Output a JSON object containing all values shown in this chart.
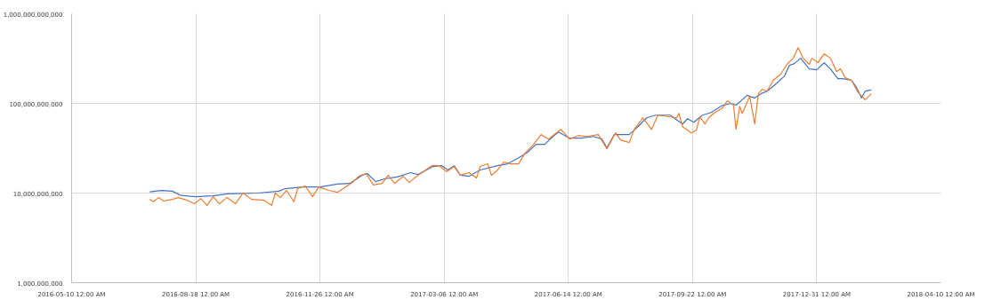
{
  "chart_data": {
    "type": "line",
    "log": "y",
    "grid": true,
    "marker": "none",
    "line_style": "solid",
    "xlim": [
      "2016-05-10",
      "2018-04-10"
    ],
    "xticks": [
      {
        "value": "2016-05-10",
        "label": "2016-05-10 12:00 AM"
      },
      {
        "value": "2016-08-18",
        "label": "2016-08-18 12:00 AM"
      },
      {
        "value": "2016-11-26",
        "label": "2016-11-26 12:00 AM"
      },
      {
        "value": "2017-03-06",
        "label": "2017-03-06 12:00 AM"
      },
      {
        "value": "2017-06-14",
        "label": "2017-06-14 12:00 AM"
      },
      {
        "value": "2017-09-22",
        "label": "2017-09-22 12:00 AM"
      },
      {
        "value": "2017-12-31",
        "label": "2017-12-31 12:00 AM"
      },
      {
        "value": "2018-04-10",
        "label": "2018-04-10 12:00 AM"
      }
    ],
    "ylim": [
      1000000000.0,
      1000000000000.0
    ],
    "yticks": [
      {
        "value": 1000000000.0,
        "label": "1,000,000,000"
      },
      {
        "value": 10000000000.0,
        "label": "10,000,000,000"
      },
      {
        "value": 100000000000.0,
        "label": "100,000,000,000"
      },
      {
        "value": 1000000000000.0,
        "label": "1,000,000,000,000"
      }
    ],
    "series": [
      {
        "color": "#4472c4",
        "x": [
          "2016-07-12",
          "2016-07-21",
          "2016-07-30",
          "2016-08-06",
          "2016-08-18",
          "2016-09-01",
          "2016-09-13",
          "2016-10-07",
          "2016-10-24",
          "2016-10-29",
          "2016-11-12",
          "2016-11-26",
          "2016-12-10",
          "2016-12-20",
          "2016-12-30",
          "2017-01-03",
          "2017-01-10",
          "2017-01-17",
          "2017-01-27",
          "2017-02-07",
          "2017-02-13",
          "2017-02-25",
          "2017-03-04",
          "2017-03-09",
          "2017-03-14",
          "2017-03-19",
          "2017-03-26",
          "2017-04-04",
          "2017-04-18",
          "2017-04-26",
          "2017-05-05",
          "2017-05-12",
          "2017-05-19",
          "2017-05-26",
          "2017-05-31",
          "2017-06-06",
          "2017-06-15",
          "2017-06-24",
          "2017-07-04",
          "2017-07-11",
          "2017-07-15",
          "2017-07-21",
          "2017-08-02",
          "2017-08-09",
          "2017-08-16",
          "2017-08-23",
          "2017-09-04",
          "2017-09-14",
          "2017-09-18",
          "2017-09-23",
          "2017-09-30",
          "2017-10-07",
          "2017-10-16",
          "2017-10-23",
          "2017-10-27",
          "2017-11-05",
          "2017-11-11",
          "2017-11-16",
          "2017-11-21",
          "2017-11-29",
          "2017-12-05",
          "2017-12-09",
          "2017-12-13",
          "2017-12-18",
          "2017-12-25",
          "2017-12-31",
          "2018-01-06",
          "2018-01-11",
          "2018-01-17",
          "2018-01-21",
          "2018-01-28",
          "2018-02-01",
          "2018-02-05",
          "2018-02-08",
          "2018-02-13"
        ],
        "values": [
          10300000000.0,
          10700000000.0,
          10500000000.0,
          9400000000.0,
          9100000000.0,
          9300000000.0,
          9800000000.0,
          10000000000.0,
          10500000000.0,
          11200000000.0,
          11700000000.0,
          11700000000.0,
          12600000000.0,
          12800000000.0,
          15800000000.0,
          16500000000.0,
          13400000000.0,
          14400000000.0,
          15100000000.0,
          16900000000.0,
          16100000000.0,
          19800000000.0,
          20200000000.0,
          18100000000.0,
          20200000000.0,
          15800000000.0,
          15400000000.0,
          18100000000.0,
          20200000000.0,
          21200000000.0,
          24800000000.0,
          28400000000.0,
          34900000000.0,
          34900000000.0,
          40900000000.0,
          48000000000.0,
          40900000000.0,
          40900000000.0,
          42800000000.0,
          40000000000.0,
          31900000000.0,
          44900000000.0,
          44900000000.0,
          55000000000.0,
          69000000000.0,
          73900000000.0,
          73900000000.0,
          58900000000.0,
          67500000000.0,
          61700000000.0,
          73900000000.0,
          79100000000.0,
          94800000000.0,
          100000000000.0,
          95600000000.0,
          123000000000.0,
          115000000000.0,
          128000000000.0,
          137000000000.0,
          169000000000.0,
          202000000000.0,
          266000000000.0,
          278000000000.0,
          319000000000.0,
          243000000000.0,
          237000000000.0,
          284000000000.0,
          243000000000.0,
          189000000000.0,
          189000000000.0,
          181000000000.0,
          151000000000.0,
          115000000000.0,
          137000000000.0,
          141000000000.0
        ]
      },
      {
        "color": "#ed7d31",
        "x": [
          "2016-07-12",
          "2016-07-15",
          "2016-07-19",
          "2016-07-23",
          "2016-07-30",
          "2016-08-04",
          "2016-08-11",
          "2016-08-17",
          "2016-08-22",
          "2016-08-27",
          "2016-09-01",
          "2016-09-06",
          "2016-09-12",
          "2016-09-19",
          "2016-09-25",
          "2016-10-02",
          "2016-10-12",
          "2016-10-18",
          "2016-10-21",
          "2016-10-25",
          "2016-10-30",
          "2016-11-05",
          "2016-11-08",
          "2016-11-14",
          "2016-11-20",
          "2016-11-25",
          "2016-12-03",
          "2016-12-10",
          "2016-12-23",
          "2016-12-27",
          "2017-01-02",
          "2017-01-08",
          "2017-01-15",
          "2017-01-20",
          "2017-01-25",
          "2017-02-01",
          "2017-02-06",
          "2017-02-11",
          "2017-02-15",
          "2017-02-24",
          "2017-03-02",
          "2017-03-08",
          "2017-03-14",
          "2017-03-19",
          "2017-03-26",
          "2017-04-01",
          "2017-04-04",
          "2017-04-10",
          "2017-04-13",
          "2017-04-18",
          "2017-04-23",
          "2017-04-28",
          "2017-05-05",
          "2017-05-10",
          "2017-05-17",
          "2017-05-23",
          "2017-05-29",
          "2017-06-08",
          "2017-06-15",
          "2017-06-22",
          "2017-06-29",
          "2017-07-08",
          "2017-07-15",
          "2017-07-22",
          "2017-07-26",
          "2017-08-02",
          "2017-08-06",
          "2017-08-13",
          "2017-08-20",
          "2017-08-25",
          "2017-09-09",
          "2017-09-11",
          "2017-09-14",
          "2017-09-21",
          "2017-09-25",
          "2017-09-28",
          "2017-10-02",
          "2017-10-05",
          "2017-10-09",
          "2017-10-16",
          "2017-10-20",
          "2017-10-25",
          "2017-10-27",
          "2017-10-30",
          "2017-11-01",
          "2017-11-07",
          "2017-11-11",
          "2017-11-14",
          "2017-11-17",
          "2017-11-21",
          "2017-11-26",
          "2017-12-02",
          "2017-12-07",
          "2017-12-12",
          "2017-12-16",
          "2017-12-20",
          "2017-12-25",
          "2017-12-27",
          "2018-01-01",
          "2018-01-06",
          "2018-01-11",
          "2018-01-16",
          "2018-01-19",
          "2018-01-23",
          "2018-01-28",
          "2018-02-02",
          "2018-02-08",
          "2018-02-13"
        ],
        "values": [
          8500000000.0,
          8000000000.0,
          8900000000.0,
          8150000000.0,
          8500000000.0,
          8900000000.0,
          8300000000.0,
          7600000000.0,
          8700000000.0,
          7300000000.0,
          9100000000.0,
          7600000000.0,
          8900000000.0,
          7600000000.0,
          10000000000.0,
          8500000000.0,
          8300000000.0,
          7300000000.0,
          10000000000.0,
          8900000000.0,
          10700000000.0,
          8000000000.0,
          11200000000.0,
          12000000000.0,
          9100000000.0,
          11700000000.0,
          10700000000.0,
          10200000000.0,
          13400000000.0,
          15400000000.0,
          16500000000.0,
          12300000000.0,
          12800000000.0,
          15800000000.0,
          12800000000.0,
          15400000000.0,
          13100000000.0,
          15100000000.0,
          16500000000.0,
          20200000000.0,
          20200000000.0,
          17300000000.0,
          19800000000.0,
          15800000000.0,
          16900000000.0,
          14700000000.0,
          19800000000.0,
          21200000000.0,
          15800000000.0,
          18100000000.0,
          22200000000.0,
          21200000000.0,
          21200000000.0,
          27800000000.0,
          34900000000.0,
          44900000000.0,
          40000000000.0,
          51300000000.0,
          40000000000.0,
          43800000000.0,
          42800000000.0,
          44900000000.0,
          31200000000.0,
          46900000000.0,
          39100000000.0,
          36600000000.0,
          51300000000.0,
          69000000000.0,
          51300000000.0,
          73900000000.0,
          69000000000.0,
          77400000000.0,
          55000000000.0,
          46900000000.0,
          50200000000.0,
          70600000000.0,
          58900000000.0,
          69000000000.0,
          77400000000.0,
          88500000000.0,
          107000000000.0,
          95600000000.0,
          51300000000.0,
          92700000000.0,
          77400000000.0,
          120000000000.0,
          58900000000.0,
          128000000000.0,
          144000000000.0,
          137000000000.0,
          181000000000.0,
          212000000000.0,
          273000000000.0,
          319000000000.0,
          419000000000.0,
          319000000000.0,
          273000000000.0,
          319000000000.0,
          284000000000.0,
          357000000000.0,
          319000000000.0,
          226000000000.0,
          243000000000.0,
          193000000000.0,
          181000000000.0,
          134000000000.0,
          110000000000.0,
          128000000000.0
        ]
      }
    ]
  }
}
